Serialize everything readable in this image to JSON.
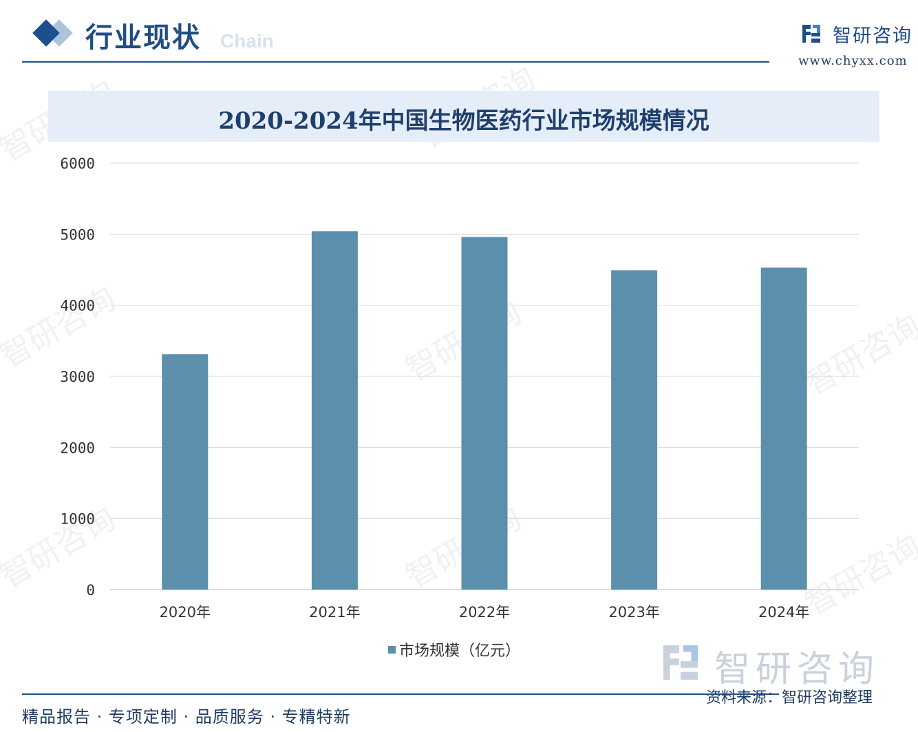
{
  "header": {
    "section_title": "行业现状",
    "ghost_text": "Chain",
    "brand_name": "智研咨询",
    "brand_url": "www.chyxx.com"
  },
  "chart_data": {
    "type": "bar",
    "title": "2020-2024年中国生物医药行业市场规模情况",
    "categories": [
      "2020年",
      "2021年",
      "2022年",
      "2023年",
      "2024年"
    ],
    "series": [
      {
        "name": "市场规模（亿元）",
        "values": [
          3310,
          5040,
          4960,
          4490,
          4530
        ]
      }
    ],
    "xlabel": "",
    "ylabel": "",
    "ylim": [
      0,
      6000
    ],
    "yticks": [
      "0",
      "1000",
      "2000",
      "3000",
      "4000",
      "5000",
      "6000"
    ],
    "grid": true,
    "legend_position": "bottom",
    "bar_color": "#5b8fab"
  },
  "watermark_text": "智研咨询",
  "big_brand": "智研咨询",
  "source": "资料来源：智研咨询整理",
  "footer": {
    "tagline": "精品报告 · 专项定制 · 品质服务 · 专精特新"
  },
  "colors": {
    "primary": "#1f4e86",
    "title_band": "#e5eef8",
    "bar": "#5b8fab",
    "grid": "#d9d9d9"
  }
}
